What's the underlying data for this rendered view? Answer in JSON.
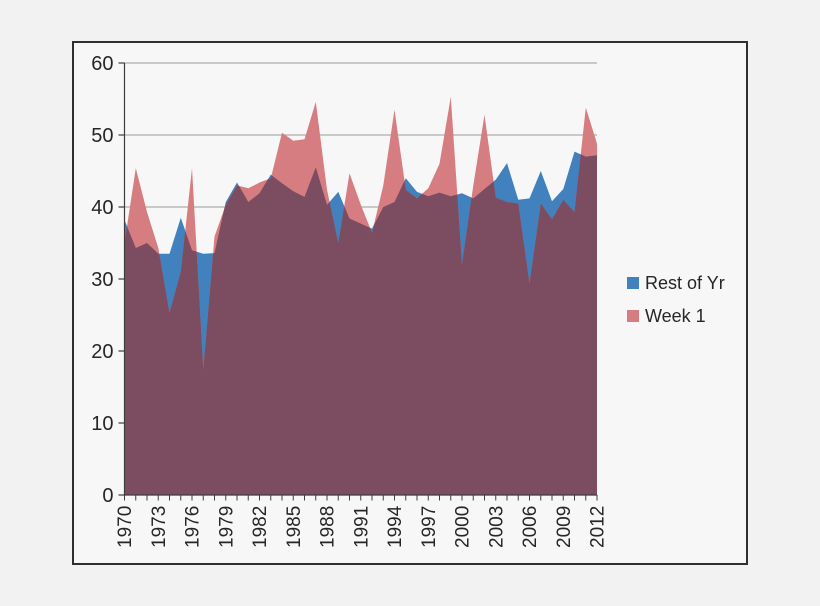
{
  "chart_data": {
    "type": "area",
    "mode": "overlaid-transparent",
    "title": "",
    "xlabel": "",
    "ylabel": "",
    "x": [
      1970,
      1971,
      1972,
      1973,
      1974,
      1975,
      1976,
      1977,
      1978,
      1979,
      1980,
      1981,
      1982,
      1983,
      1984,
      1985,
      1986,
      1987,
      1988,
      1989,
      1990,
      1991,
      1992,
      1993,
      1994,
      1995,
      1996,
      1997,
      1998,
      1999,
      2000,
      2001,
      2002,
      2003,
      2004,
      2005,
      2006,
      2007,
      2008,
      2009,
      2010,
      2011,
      2012
    ],
    "series": [
      {
        "name": "Rest of Yr",
        "color": "#4181be",
        "values": [
          38.2,
          34.3,
          35.0,
          33.5,
          33.5,
          38.5,
          34.0,
          33.5,
          33.6,
          40.7,
          43.4,
          40.7,
          41.9,
          44.5,
          43.3,
          42.2,
          41.4,
          45.5,
          40.3,
          42.1,
          38.4,
          37.7,
          37.0,
          40.0,
          40.7,
          44.0,
          42.1,
          41.5,
          42.0,
          41.5,
          41.9,
          41.2,
          42.5,
          43.8,
          46.1,
          41.0,
          41.2,
          45.0,
          40.8,
          42.5,
          47.7,
          47.0,
          47.2
        ]
      },
      {
        "name": "Week 1",
        "color": "#d67d82",
        "values": [
          35.0,
          45.4,
          39.3,
          34.3,
          25.3,
          31.0,
          45.4,
          17.4,
          35.9,
          40.3,
          43.0,
          42.6,
          43.4,
          44.0,
          50.3,
          49.2,
          49.4,
          54.6,
          42.4,
          35.0,
          44.7,
          40.3,
          36.4,
          43.0,
          53.5,
          42.4,
          41.2,
          42.6,
          46.0,
          55.3,
          32.0,
          43.0,
          52.8,
          41.3,
          40.7,
          40.5,
          29.4,
          40.5,
          38.3,
          41.0,
          39.3,
          53.8,
          48.8
        ]
      }
    ],
    "overlap_color": "#7c4d61",
    "ylim": [
      0,
      60
    ],
    "y_ticks": [
      0,
      10,
      20,
      30,
      40,
      50,
      60
    ],
    "x_tick_labels": [
      "1970",
      "1973",
      "1976",
      "1979",
      "1982",
      "1985",
      "1988",
      "1991",
      "1994",
      "1997",
      "2000",
      "2003",
      "2006",
      "2009",
      "2012"
    ],
    "x_tick_label_step": 3,
    "grid": true,
    "legend_position": "right-middle"
  },
  "colors": {
    "page_background": "#f2f2f2",
    "chart_background": "#f7f7f7",
    "frame_border": "#2f2f2f",
    "gridline": "#9b9b9b",
    "axis_line": "#3d3d3d",
    "tick_text": "#262626"
  }
}
